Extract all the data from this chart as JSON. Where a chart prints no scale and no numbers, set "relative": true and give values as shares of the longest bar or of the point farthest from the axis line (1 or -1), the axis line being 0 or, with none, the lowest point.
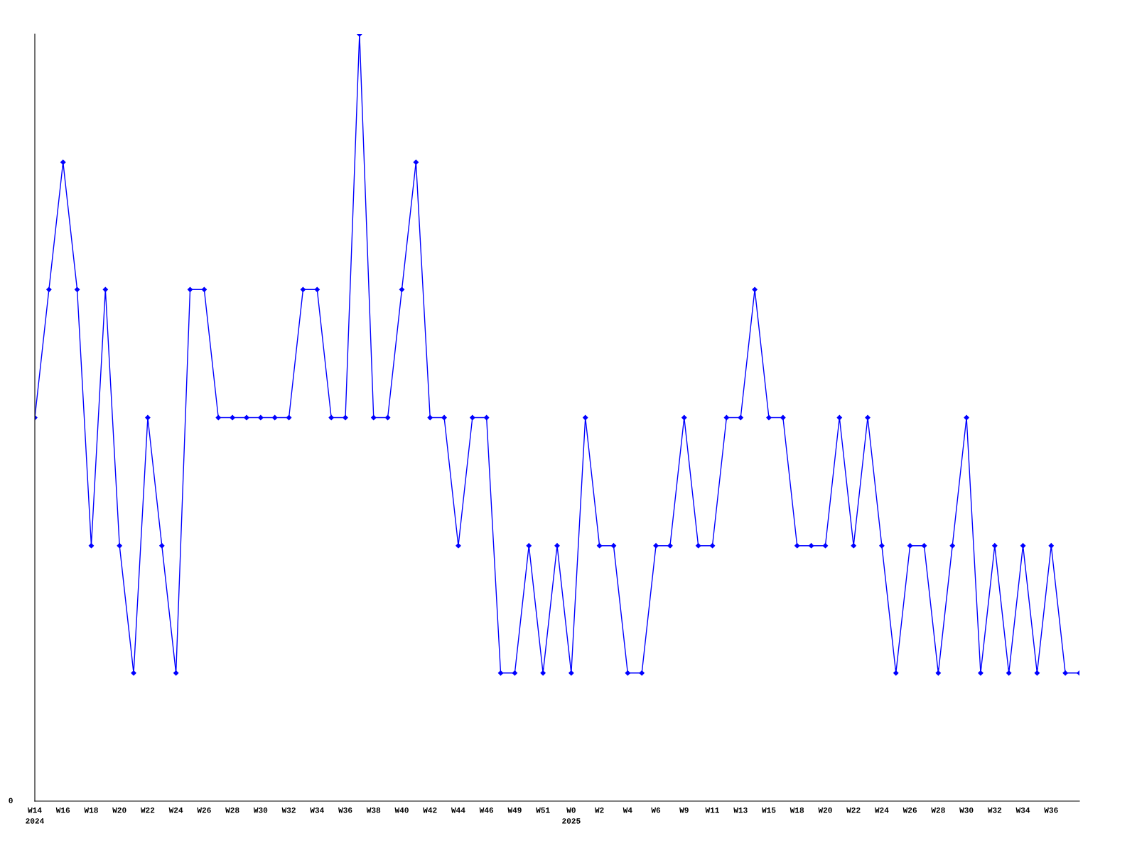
{
  "chart_data": {
    "type": "line",
    "relative": true,
    "color": "#0000ff",
    "marker": "diamond",
    "line_style": "solid",
    "grid": false,
    "categories": [
      "W14\n2024",
      null,
      "W16",
      null,
      "W18",
      null,
      "W20",
      null,
      "W22",
      null,
      "W24",
      null,
      "W26",
      null,
      "W28",
      null,
      "W30",
      null,
      "W32",
      null,
      "W34",
      null,
      "W36",
      null,
      "W38",
      null,
      "W40",
      null,
      "W42",
      null,
      "W44",
      null,
      "W46",
      null,
      "W49",
      null,
      "W51",
      null,
      "W0\n2025",
      null,
      "W2",
      null,
      "W4",
      null,
      "W6",
      null,
      "W9",
      null,
      "W11",
      null,
      "W13",
      null,
      "W15",
      null,
      "W18",
      null,
      "W20",
      null,
      "W22",
      null,
      "W24",
      null,
      "W26",
      null,
      "W28",
      null,
      "W30",
      null,
      "W32",
      null,
      "W34",
      null,
      "W36",
      null,
      null
    ],
    "values": [
      0.5,
      0.667,
      0.833,
      0.667,
      0.333,
      0.667,
      0.333,
      0.167,
      0.5,
      0.333,
      0.167,
      0.667,
      0.667,
      0.5,
      0.5,
      0.5,
      0.5,
      0.5,
      0.5,
      0.667,
      0.667,
      0.5,
      0.5,
      1,
      0.5,
      0.5,
      0.667,
      0.833,
      0.5,
      0.5,
      0.333,
      0.5,
      0.5,
      0.167,
      0.167,
      0.333,
      0.167,
      0.333,
      0.167,
      0.5,
      0.333,
      0.333,
      0.167,
      0.167,
      0.333,
      0.333,
      0.5,
      0.333,
      0.333,
      0.5,
      0.5,
      0.667,
      0.5,
      0.5,
      0.333,
      0.333,
      0.333,
      0.5,
      0.333,
      0.5,
      0.333,
      0.167,
      0.333,
      0.333,
      0.167,
      0.333,
      0.5,
      0.167,
      0.333,
      0.167,
      0.333,
      0.167,
      0.333,
      0.167,
      0.167
    ],
    "annotations": [
      "0"
    ]
  }
}
